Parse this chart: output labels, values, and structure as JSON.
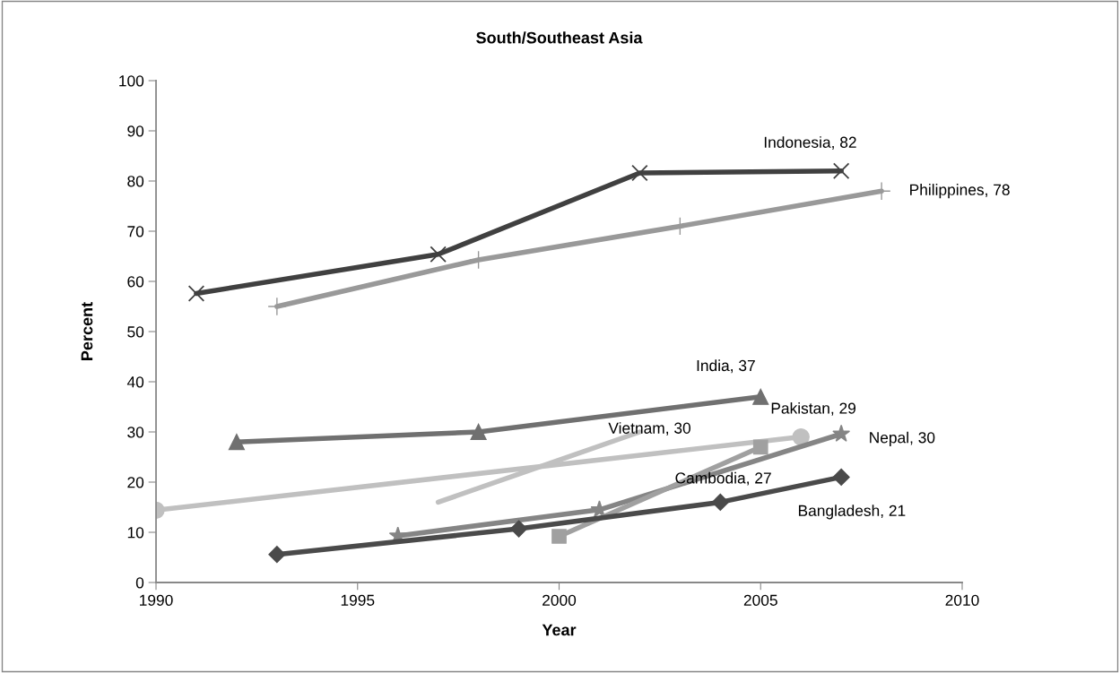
{
  "chart_data": {
    "type": "line",
    "title": "South/Southeast Asia",
    "xlabel": "Year",
    "ylabel": "Percent",
    "xlim": [
      1990,
      2010
    ],
    "xticks": [
      1990,
      1995,
      2000,
      2005,
      2010
    ],
    "ylim": [
      0,
      100
    ],
    "yticks": [
      0,
      10,
      20,
      30,
      40,
      50,
      60,
      70,
      80,
      90,
      100
    ],
    "grid": false,
    "legend": false,
    "series": [
      {
        "color": "#404040",
        "marker": "cross",
        "x": [
          1991,
          1997,
          2002,
          2007
        ],
        "values": [
          57.6,
          65.4,
          81.6,
          82
        ]
      },
      {
        "color": "#999999",
        "marker": "plus",
        "x": [
          1993,
          1998,
          2003,
          2008
        ],
        "values": [
          55,
          64.3,
          71,
          78
        ]
      },
      {
        "color": "#707070",
        "marker": "triangle",
        "x": [
          1992,
          1998,
          2005
        ],
        "values": [
          28,
          30,
          37
        ]
      },
      {
        "color": "#c0c0c0",
        "marker": "none",
        "x": [
          1997,
          2002
        ],
        "values": [
          16,
          30
        ]
      },
      {
        "color": "#c0c0c0",
        "marker": "circle",
        "x": [
          1990,
          2006
        ],
        "values": [
          14.4,
          29
        ]
      },
      {
        "color": "#858585",
        "marker": "star",
        "x": [
          1996,
          2001,
          2007
        ],
        "values": [
          9.3,
          14.5,
          29.6
        ]
      },
      {
        "color": "#a0a0a0",
        "marker": "square",
        "x": [
          2000,
          2005
        ],
        "values": [
          9.2,
          27
        ]
      },
      {
        "color": "#4a4a4a",
        "marker": "diamond",
        "x": [
          1993,
          1999,
          2004,
          2007
        ],
        "values": [
          5.6,
          10.7,
          16,
          21
        ]
      }
    ],
    "annotations": [
      {
        "text": "Indonesia, 82",
        "x": 2007,
        "y": 82
      },
      {
        "text": "Philippines, 78",
        "x": 2008,
        "y": 78
      },
      {
        "text": "India, 37",
        "x": 2005,
        "y": 37
      },
      {
        "text": "Vietnam, 30",
        "x": 2002,
        "y": 30
      },
      {
        "text": "Pakistan, 29",
        "x": 2006,
        "y": 29
      },
      {
        "text": "Nepal, 30",
        "x": 2007,
        "y": 29.6
      },
      {
        "text": "Cambodia, 27",
        "x": 2005,
        "y": 27
      },
      {
        "text": "Bangladesh, 21",
        "x": 2007,
        "y": 21
      }
    ]
  }
}
